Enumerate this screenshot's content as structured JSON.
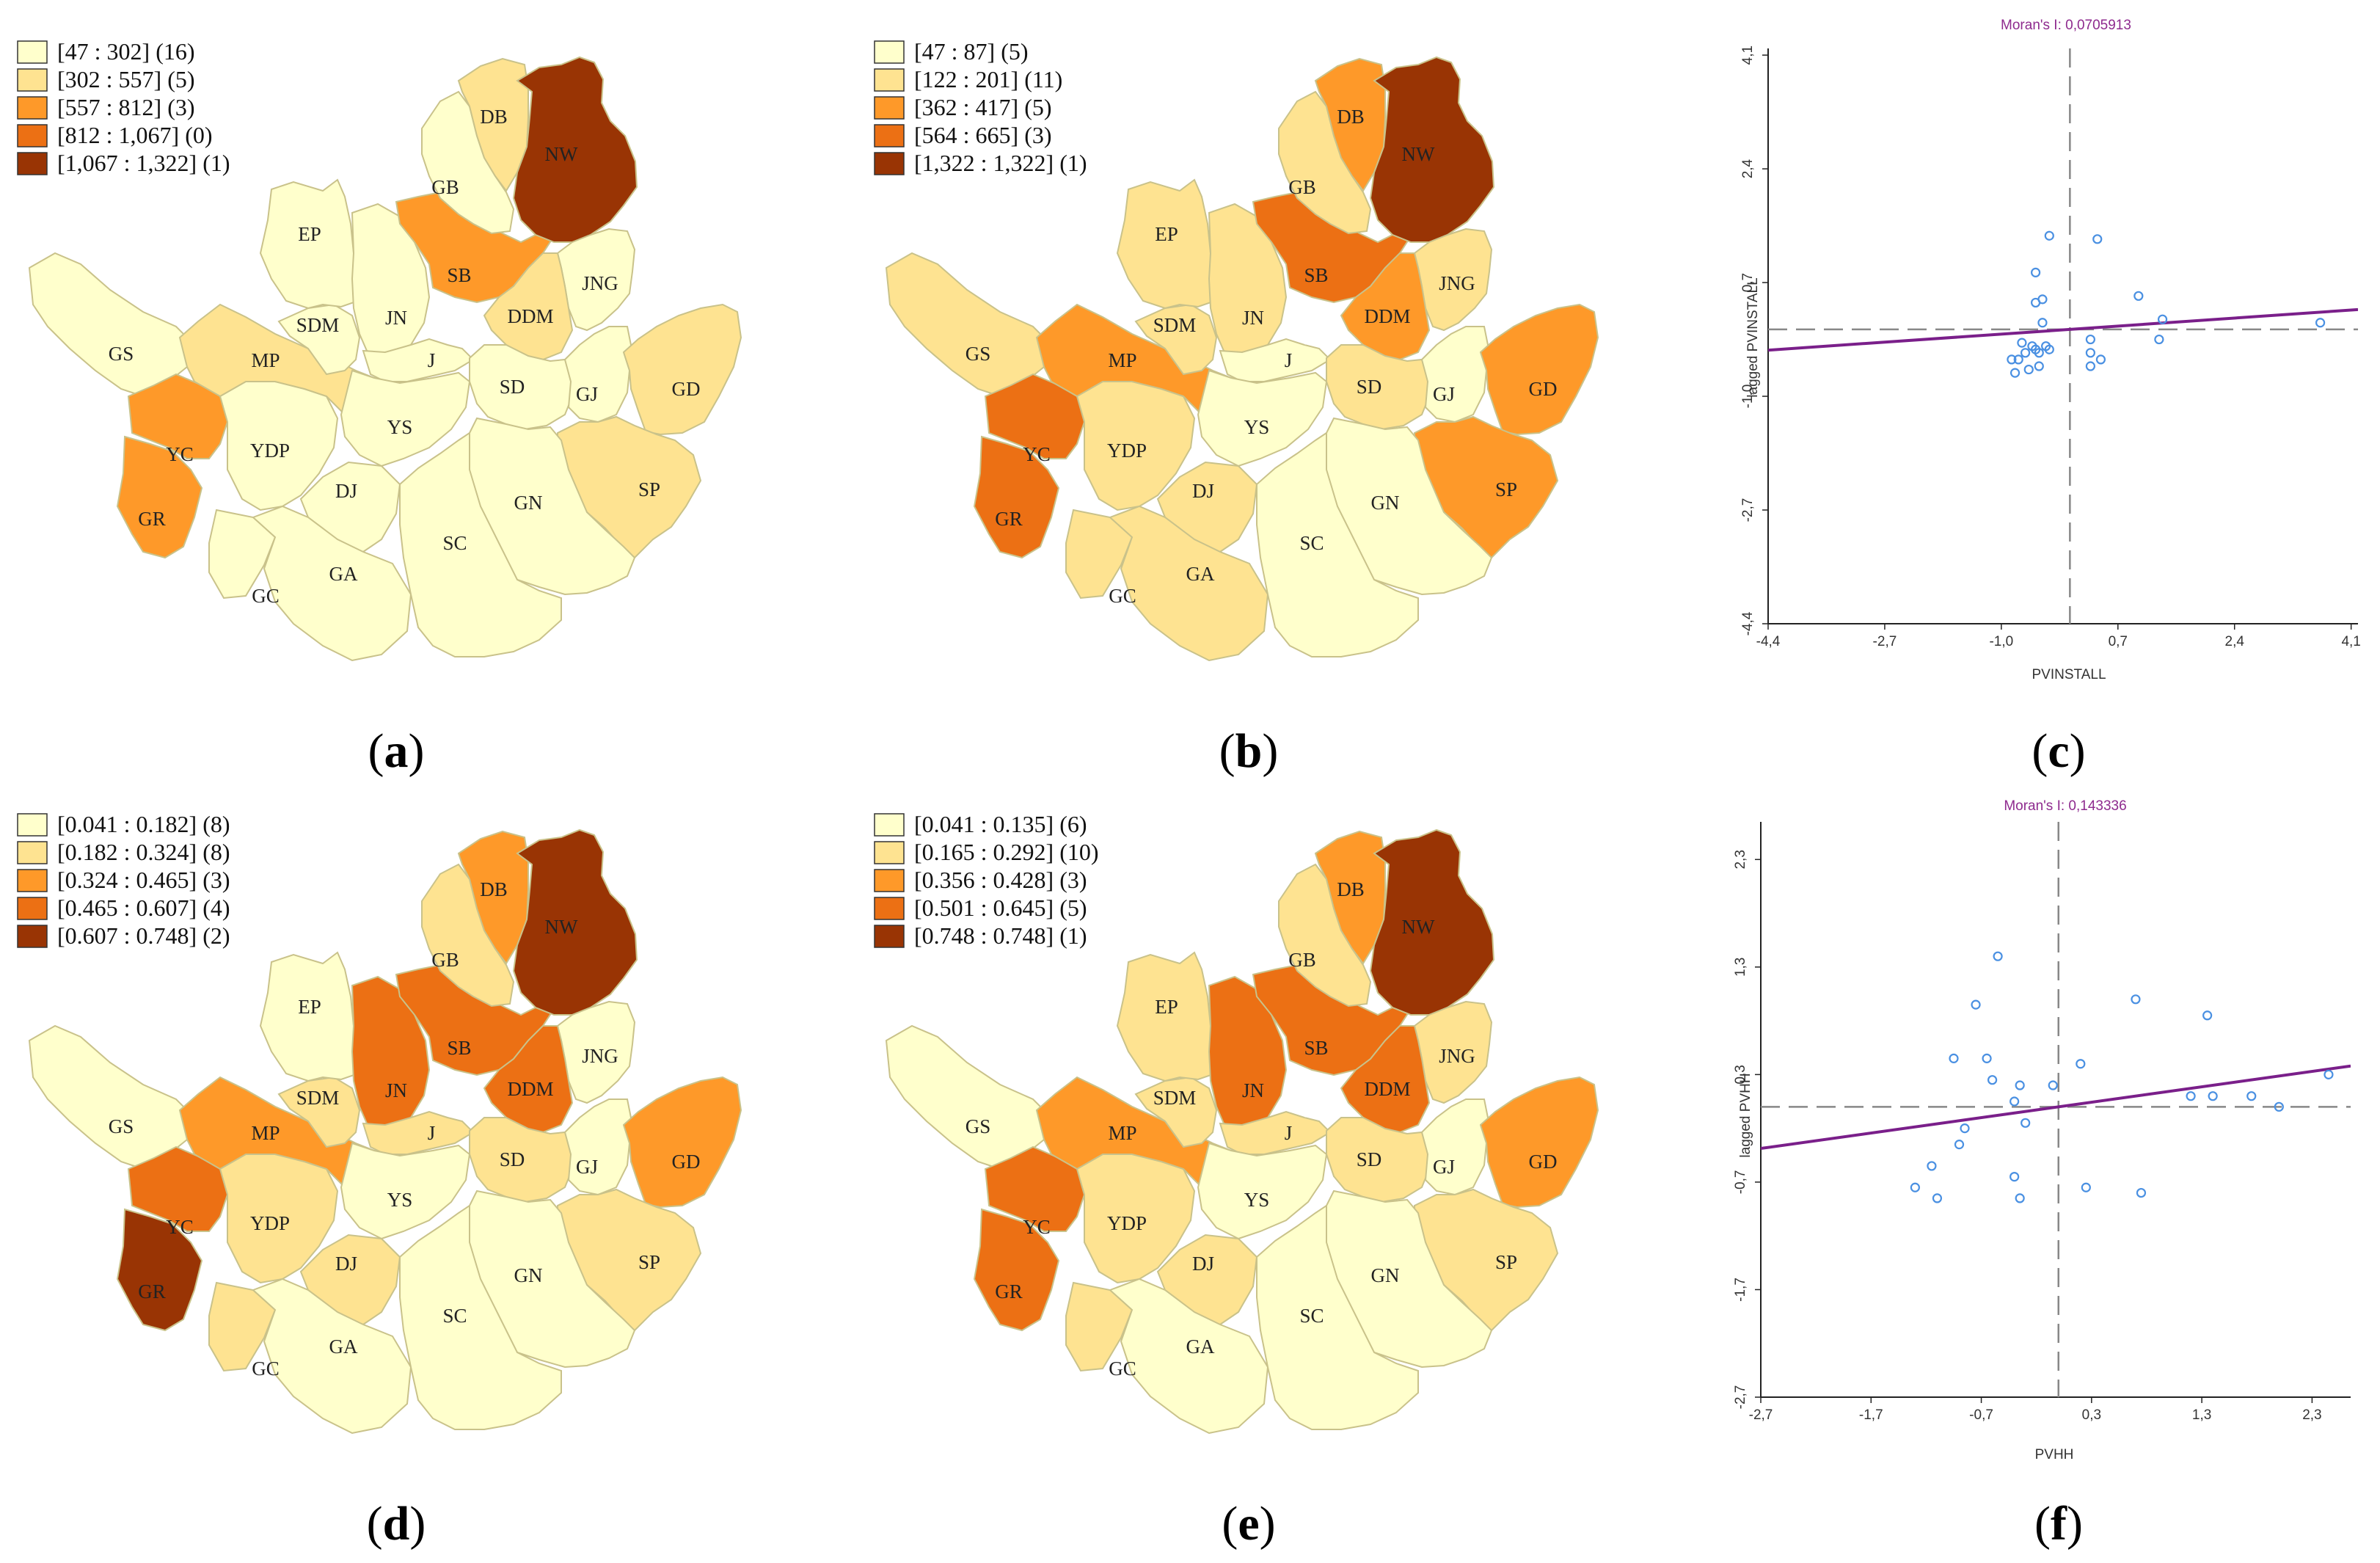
{
  "chart_data": [
    {
      "panel": "a",
      "type": "choropleth",
      "caption": "a",
      "legend": [
        {
          "label": "[47 : 302] (16)",
          "color": "#ffffcc"
        },
        {
          "label": "[302 : 557] (5)",
          "color": "#fee391"
        },
        {
          "label": "[557 : 812] (3)",
          "color": "#fe9929"
        },
        {
          "label": "[812 : 1,067] (0)",
          "color": "#ec7014"
        },
        {
          "label": "[1,067 : 1,322] (1)",
          "color": "#993404"
        }
      ],
      "districts": {
        "GS": 0,
        "YC": 2,
        "GR": 2,
        "GC": 0,
        "YDP": 0,
        "DJ": 0,
        "GA": 0,
        "MP": 1,
        "SDM": 0,
        "EP": 0,
        "JN": 0,
        "J": 0,
        "YS": 0,
        "SB": 2,
        "GB": 0,
        "DB": 1,
        "NW": 4,
        "JNG": 0,
        "DDM": 1,
        "SD": 0,
        "GJ": 0,
        "GD": 1,
        "SP": 1,
        "GN": 0,
        "SC": 0
      }
    },
    {
      "panel": "b",
      "type": "choropleth",
      "caption": "b",
      "legend": [
        {
          "label": "[47 : 87] (5)",
          "color": "#ffffcc"
        },
        {
          "label": "[122 : 201] (11)",
          "color": "#fee391"
        },
        {
          "label": "[362 : 417] (5)",
          "color": "#fe9929"
        },
        {
          "label": "[564 : 665] (3)",
          "color": "#ec7014"
        },
        {
          "label": "[1,322 : 1,322] (1)",
          "color": "#993404"
        }
      ],
      "districts": {
        "GS": 1,
        "YC": 3,
        "GR": 3,
        "GC": 1,
        "YDP": 1,
        "DJ": 1,
        "GA": 1,
        "MP": 2,
        "SDM": 1,
        "EP": 1,
        "JN": 1,
        "J": 0,
        "YS": 0,
        "SB": 3,
        "GB": 1,
        "DB": 2,
        "NW": 4,
        "JNG": 1,
        "DDM": 2,
        "SD": 1,
        "GJ": 0,
        "GD": 2,
        "SP": 2,
        "GN": 0,
        "SC": 0
      }
    },
    {
      "panel": "c",
      "type": "scatter",
      "caption": "c",
      "title": "Moran's I: 0,0705913",
      "moran_i": 0.0705913,
      "xlabel": "PVINSTALL",
      "ylabel": "lagged PVINSTALL",
      "xlim": [
        -4.4,
        4.2
      ],
      "ylim": [
        -4.4,
        4.2
      ],
      "xticks": [
        "-4,4",
        "-2,7",
        "-1,0",
        "0,7",
        "2,4",
        "4,1"
      ],
      "yticks": [
        "-4,4",
        "-2,7",
        "-1,0",
        "0,7",
        "2,4",
        "4,1"
      ],
      "xtick_values": [
        -4.4,
        -2.7,
        -1.0,
        0.7,
        2.4,
        4.1
      ],
      "ytick_values": [
        -4.4,
        -2.7,
        -1.0,
        0.7,
        2.4,
        4.1
      ],
      "mean_x": 0.0,
      "mean_y": 0.0,
      "slope": 0.0705913,
      "points": [
        [
          -0.3,
          1.4
        ],
        [
          0.4,
          1.35
        ],
        [
          -0.5,
          0.85
        ],
        [
          -0.5,
          0.4
        ],
        [
          -0.4,
          0.45
        ],
        [
          -0.4,
          0.1
        ],
        [
          -0.7,
          -0.2
        ],
        [
          -0.65,
          -0.35
        ],
        [
          -0.75,
          -0.45
        ],
        [
          -0.85,
          -0.45
        ],
        [
          -0.6,
          -0.6
        ],
        [
          -0.8,
          -0.65
        ],
        [
          -0.45,
          -0.55
        ],
        [
          -0.5,
          -0.3
        ],
        [
          -0.45,
          -0.35
        ],
        [
          -0.3,
          -0.3
        ],
        [
          -0.35,
          -0.25
        ],
        [
          -0.55,
          -0.25
        ],
        [
          0.3,
          -0.15
        ],
        [
          0.3,
          -0.35
        ],
        [
          0.45,
          -0.45
        ],
        [
          0.3,
          -0.55
        ],
        [
          1.0,
          0.5
        ],
        [
          1.35,
          0.15
        ],
        [
          1.3,
          -0.15
        ],
        [
          3.65,
          0.1
        ]
      ]
    },
    {
      "panel": "d",
      "type": "choropleth",
      "caption": "d",
      "legend": [
        {
          "label": "[0.041 : 0.182] (8)",
          "color": "#ffffcc"
        },
        {
          "label": "[0.182 : 0.324] (8)",
          "color": "#fee391"
        },
        {
          "label": "[0.324 : 0.465] (3)",
          "color": "#fe9929"
        },
        {
          "label": "[0.465 : 0.607] (4)",
          "color": "#ec7014"
        },
        {
          "label": "[0.607 : 0.748] (2)",
          "color": "#993404"
        }
      ],
      "districts": {
        "GS": 0,
        "YC": 3,
        "GR": 4,
        "GC": 1,
        "YDP": 1,
        "DJ": 1,
        "GA": 0,
        "MP": 2,
        "SDM": 1,
        "EP": 0,
        "JN": 3,
        "J": 1,
        "YS": 0,
        "SB": 3,
        "GB": 1,
        "DB": 2,
        "NW": 4,
        "JNG": 0,
        "DDM": 3,
        "SD": 1,
        "GJ": 0,
        "GD": 2,
        "SP": 1,
        "GN": 0,
        "SC": 0
      }
    },
    {
      "panel": "e",
      "type": "choropleth",
      "caption": "e",
      "legend": [
        {
          "label": "[0.041 : 0.135] (6)",
          "color": "#ffffcc"
        },
        {
          "label": "[0.165 : 0.292] (10)",
          "color": "#fee391"
        },
        {
          "label": "[0.356 : 0.428] (3)",
          "color": "#fe9929"
        },
        {
          "label": "[0.501 : 0.645] (5)",
          "color": "#ec7014"
        },
        {
          "label": "[0.748 : 0.748] (1)",
          "color": "#993404"
        }
      ],
      "districts": {
        "GS": 0,
        "YC": 3,
        "GR": 3,
        "GC": 1,
        "YDP": 1,
        "DJ": 1,
        "GA": 0,
        "MP": 2,
        "SDM": 1,
        "EP": 1,
        "JN": 3,
        "J": 1,
        "YS": 0,
        "SB": 3,
        "GB": 1,
        "DB": 2,
        "NW": 4,
        "JNG": 1,
        "DDM": 3,
        "SD": 1,
        "GJ": 0,
        "GD": 2,
        "SP": 1,
        "GN": 0,
        "SC": 0
      }
    },
    {
      "panel": "f",
      "type": "scatter",
      "caption": "f",
      "title": "Moran's I: 0,143336",
      "moran_i": 0.143336,
      "xlabel": "PVHH",
      "ylabel": "lagged PVHH",
      "xlim": [
        -2.7,
        2.65
      ],
      "ylim": [
        -2.7,
        2.65
      ],
      "xticks": [
        "-2,7",
        "-1,7",
        "-0,7",
        "0,3",
        "1,3",
        "2,3"
      ],
      "yticks": [
        "-2,7",
        "-1,7",
        "-0,7",
        "0,3",
        "1,3",
        "2,3"
      ],
      "xtick_values": [
        -2.7,
        -1.7,
        -0.7,
        0.3,
        1.3,
        2.3
      ],
      "ytick_values": [
        -2.7,
        -1.7,
        -0.7,
        0.3,
        1.3,
        2.3
      ],
      "mean_x": 0.0,
      "mean_y": 0.0,
      "slope": 0.143336,
      "points": [
        [
          -0.55,
          1.4
        ],
        [
          -0.75,
          0.95
        ],
        [
          -0.95,
          0.45
        ],
        [
          -0.65,
          0.45
        ],
        [
          -0.6,
          0.25
        ],
        [
          -0.35,
          0.2
        ],
        [
          -0.4,
          0.05
        ],
        [
          -0.3,
          -0.15
        ],
        [
          -0.85,
          -0.2
        ],
        [
          -0.9,
          -0.35
        ],
        [
          -1.15,
          -0.55
        ],
        [
          -1.3,
          -0.75
        ],
        [
          -1.1,
          -0.85
        ],
        [
          -0.4,
          -0.65
        ],
        [
          -0.35,
          -0.85
        ],
        [
          0.2,
          0.4
        ],
        [
          0.7,
          1.0
        ],
        [
          1.35,
          0.85
        ],
        [
          1.2,
          0.1
        ],
        [
          1.4,
          0.1
        ],
        [
          1.75,
          0.1
        ],
        [
          2.0,
          0.0
        ],
        [
          2.45,
          0.3
        ],
        [
          0.75,
          -0.8
        ],
        [
          0.25,
          -0.75
        ],
        [
          -0.05,
          0.2
        ]
      ]
    }
  ],
  "map_labels": {
    "GS": "GS",
    "YC": "YC",
    "GR": "GR",
    "GC": "GC",
    "YDP": "YDP",
    "DJ": "DJ",
    "GA": "GA",
    "MP": "MP",
    "SDM": "SDM",
    "EP": "EP",
    "JN": "JN",
    "J": "J",
    "YS": "YS",
    "SB": "SB",
    "GB": "GB",
    "DB": "DB",
    "NW": "NW",
    "JNG": "JNG",
    "DDM": "DDM",
    "SD": "SD",
    "GJ": "GJ",
    "GD": "GD",
    "SP": "SP",
    "GN": "GN",
    "SC": "SC"
  },
  "colors": {
    "district_border": "#c9c28a",
    "scatter_point": "#4a90e2",
    "regression_line": "#7a1f8a",
    "mean_line": "#888888",
    "axis": "#222222"
  }
}
